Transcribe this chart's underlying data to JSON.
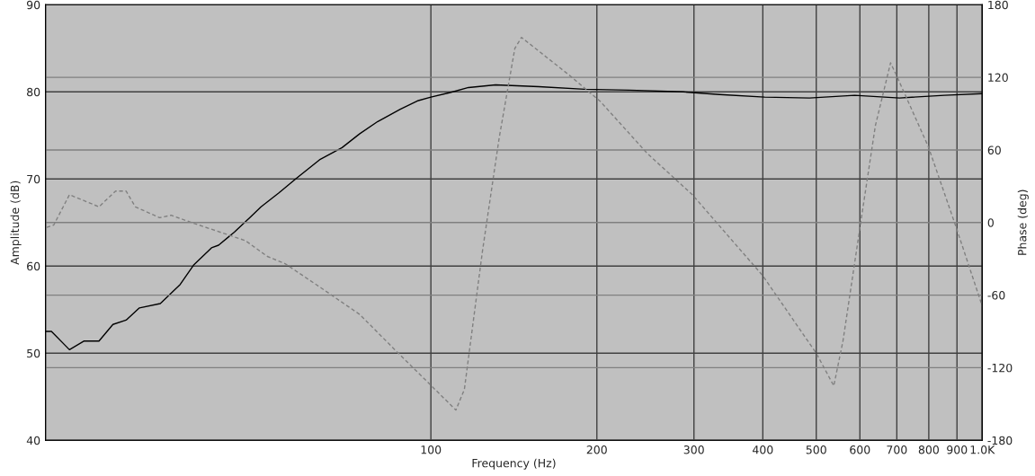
{
  "chart_data": {
    "type": "line",
    "xlabel": "Frequency (Hz)",
    "ylabel": "Amplitude (dB)",
    "y2label": "Phase (deg)",
    "log": "x",
    "grid": true,
    "legend": false,
    "marker": "none",
    "xlim": [
      20,
      1000
    ],
    "xticks": [
      100,
      200,
      300,
      400,
      500,
      600,
      700,
      800,
      900,
      {
        "value": 1000,
        "label": "1.0K"
      }
    ],
    "ylim": [
      40,
      90
    ],
    "yticks": [
      40,
      50,
      60,
      70,
      80,
      90
    ],
    "y2lim": [
      -180,
      180
    ],
    "y2ticks": [
      -180,
      -120,
      -60,
      0,
      60,
      120,
      180
    ],
    "series": [
      {
        "color": "#000000",
        "line_style": "solid",
        "x": [
          20,
          20.5,
          22.1,
          23.5,
          25,
          26.5,
          28,
          29.6,
          32.3,
          35.1,
          37.1,
          40,
          41.2,
          44,
          47,
          49.2,
          53,
          57.1,
          62.8,
          69,
          74.3,
          80.1,
          88,
          94.9,
          100,
          108,
          117,
          131,
          157,
          190,
          229,
          287,
          334,
          403,
          486,
          587,
          708,
          854,
          1000
        ],
        "values": [
          52.5,
          52.5,
          50.4,
          51.4,
          51.4,
          53.3,
          53.8,
          55.2,
          55.7,
          57.9,
          60.1,
          62.1,
          62.4,
          63.9,
          65.6,
          66.8,
          68.4,
          70.1,
          72.2,
          73.6,
          75.2,
          76.6,
          78.0,
          79.0,
          79.4,
          79.9,
          80.5,
          80.8,
          80.6,
          80.3,
          80.2,
          80.0,
          79.7,
          79.4,
          79.3,
          79.6,
          79.3,
          79.6,
          79.8
        ]
      },
      {
        "color": "#808080",
        "line_style": "dashed",
        "axis": "y2",
        "x": [
          20.1,
          20.7,
          22.1,
          25,
          26.8,
          28,
          29.1,
          32.2,
          33.8,
          36.8,
          46.1,
          50.5,
          54.4,
          63.2,
          74.3,
          86.4,
          96.7,
          111,
          115,
          124,
          133,
          142,
          146,
          178,
          203,
          247,
          298,
          400,
          500,
          538,
          559,
          602,
          640,
          682,
          700,
          798,
          897,
          1000
        ],
        "values": [
          -4,
          -2,
          23,
          13,
          26,
          26,
          13,
          4,
          6,
          0,
          -15,
          -28,
          -34,
          -54,
          -76,
          -106,
          -128,
          -155,
          -138,
          -24,
          70,
          144,
          153,
          122,
          100,
          57,
          23,
          -44,
          -108,
          -135,
          -98,
          0,
          80,
          132,
          121,
          63,
          -4,
          -69
        ]
      }
    ]
  }
}
